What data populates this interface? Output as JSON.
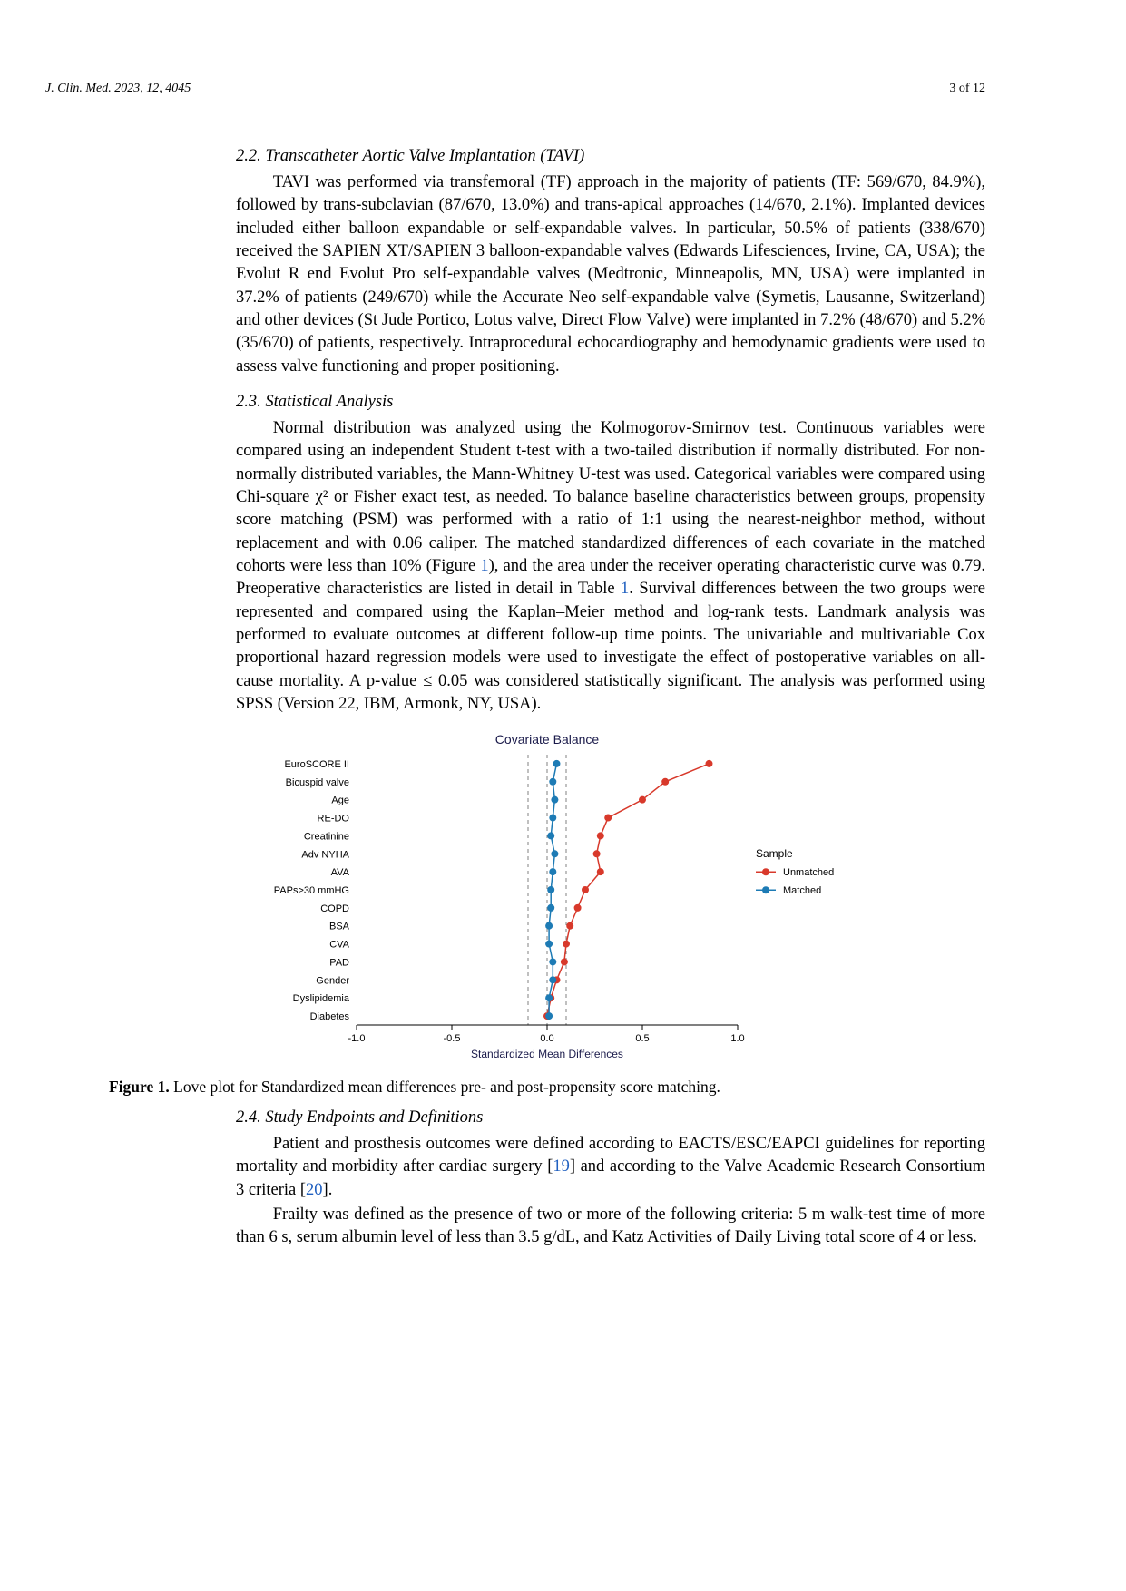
{
  "header": {
    "journal": "J. Clin. Med. 2023, 12, 4045",
    "page": "3 of 12"
  },
  "section_2_2": {
    "heading": "2.2. Transcatheter Aortic Valve Implantation (TAVI)",
    "p1": "TAVI was performed via transfemoral (TF) approach in the majority of patients (TF: 569/670, 84.9%), followed by trans-subclavian (87/670, 13.0%) and trans-apical approaches (14/670, 2.1%). Implanted devices included either balloon expandable or self-expandable valves. In particular, 50.5% of patients (338/670) received the SAPIEN XT/SAPIEN 3 balloon-expandable valves (Edwards Lifesciences, Irvine, CA, USA); the Evolut R end Evolut Pro self-expandable valves (Medtronic, Minneapolis, MN, USA) were implanted in 37.2% of patients (249/670) while the Accurate Neo self-expandable valve (Symetis, Lausanne, Switzerland) and other devices (St Jude Portico, Lotus valve, Direct Flow Valve) were implanted in 7.2% (48/670) and 5.2% (35/670) of patients, respectively. Intraprocedural echocardiography and hemodynamic gradients were used to assess valve functioning and proper positioning."
  },
  "section_2_3": {
    "heading": "2.3. Statistical Analysis",
    "p1_pre": "Normal distribution was analyzed using the Kolmogorov-Smirnov test. Continuous variables were compared using an independent Student t-test with a two-tailed distribution if normally distributed. For non-normally distributed variables, the Mann-Whitney U-test was used. Categorical variables were compared using Chi-square χ² or Fisher exact test, as needed. To balance baseline characteristics between groups, propensity score matching (PSM) was performed with a ratio of 1:1 using the nearest-neighbor method, without replacement and with 0.06 caliper. The matched standardized differences of each covariate in the matched cohorts were less than 10% (Figure ",
    "fig_ref": "1",
    "p1_mid": "), and the area under the receiver operating characteristic curve was 0.79. Preoperative characteristics are listed in detail in Table ",
    "tab_ref": "1",
    "p1_post": ". Survival differences between the two groups were represented and compared using the Kaplan–Meier method and log-rank tests. Landmark analysis was performed to evaluate outcomes at different follow-up time points. The univariable and multivariable Cox proportional hazard regression models were used to investigate the effect of postoperative variables on all-cause mortality. A p-value ≤ 0.05 was considered statistically significant. The analysis was performed using SPSS (Version 22, IBM, Armonk, NY, USA)."
  },
  "figure1": {
    "title": "Covariate Balance",
    "xaxis_label": "Standardized Mean Differences",
    "legend_title": "Sample",
    "legend_items": [
      "Unmatched",
      "Matched"
    ],
    "covariates": [
      "EuroSCORE II",
      "Bicuspid valve",
      "Age",
      "RE-DO",
      "Creatinine",
      "Adv NYHA",
      "AVA",
      "PAPs>30 mmHG",
      "COPD",
      "BSA",
      "CVA",
      "PAD",
      "Gender",
      "Dyslipidemia",
      "Diabetes"
    ],
    "xlim": [
      -1.0,
      1.0
    ],
    "xticks": [
      -1.0,
      -0.5,
      0.0,
      0.5,
      1.0
    ],
    "unmatched_x": [
      0.85,
      0.62,
      0.5,
      0.32,
      0.28,
      0.26,
      0.28,
      0.2,
      0.16,
      0.12,
      0.1,
      0.09,
      0.05,
      0.02,
      0.0
    ],
    "matched_x": [
      0.05,
      0.03,
      0.04,
      0.03,
      0.02,
      0.04,
      0.03,
      0.02,
      0.02,
      0.01,
      0.01,
      0.03,
      0.03,
      0.01,
      0.01
    ],
    "colors": {
      "unmatched": "#d8392b",
      "matched": "#1d7bb5",
      "axis": "#000000",
      "dashed": "#808080",
      "bg": "#ffffff",
      "title_font": 14,
      "label_font": 12,
      "tick_font": 11
    },
    "marker_radius": 4,
    "line_width": 1.5,
    "caption_label": "Figure 1.",
    "caption_text": " Love plot for Standardized mean differences pre- and post-propensity score matching."
  },
  "section_2_4": {
    "heading": "2.4. Study Endpoints and Definitions",
    "p1_pre": "Patient and prosthesis outcomes were defined according to EACTS/ESC/EAPCI guidelines for reporting mortality and morbidity after cardiac surgery [",
    "ref19": "19",
    "p1_mid": "] and according to the Valve Academic Research Consortium 3 criteria [",
    "ref20": "20",
    "p1_post": "].",
    "p2": "Frailty was defined as the presence of two or more of the following criteria: 5 m walk-test time of more than 6 s, serum albumin level of less than 3.5 g/dL, and Katz Activities of Daily Living total score of 4 or less."
  }
}
